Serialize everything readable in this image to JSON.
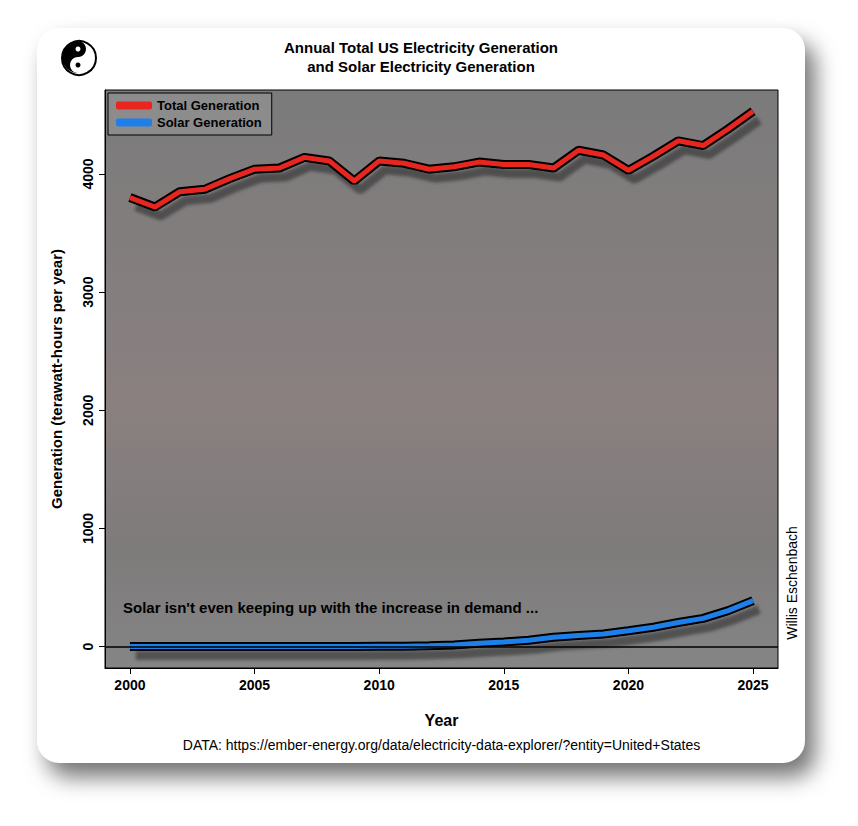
{
  "chart_data": {
    "type": "line",
    "title": "Annual Total US Electricity Generation\nand Solar Electricity Generation",
    "x_label": "Year",
    "y_label": "Generation (terawatt-hours per year)",
    "annotations": [
      "Solar isn't even keeping up with the increase in demand ...",
      "Willis Eschenbach",
      "DATA: https://ember-energy.org/data/electricity-data-explorer/?entity=United+States"
    ],
    "x": [
      2000,
      2001,
      2002,
      2003,
      2004,
      2005,
      2006,
      2007,
      2008,
      2009,
      2010,
      2011,
      2012,
      2013,
      2014,
      2015,
      2016,
      2017,
      2018,
      2019,
      2020,
      2021,
      2022,
      2023,
      2024,
      2025
    ],
    "series": [
      {
        "name": "Total Generation",
        "color": "#e8261f",
        "values": [
          3800,
          3720,
          3850,
          3870,
          3960,
          4040,
          4050,
          4140,
          4110,
          3940,
          4110,
          4090,
          4040,
          4060,
          4100,
          4080,
          4080,
          4050,
          4200,
          4160,
          4030,
          4150,
          4280,
          4240,
          4380,
          4530
        ]
      },
      {
        "name": "Solar Generation",
        "color": "#1f7fe8",
        "values": [
          1,
          1,
          1,
          1,
          1,
          1,
          1,
          1,
          2,
          2,
          3,
          4,
          8,
          15,
          30,
          40,
          55,
          80,
          95,
          107,
          135,
          165,
          205,
          240,
          305,
          390
        ]
      }
    ],
    "xlim": [
      1999,
      2026
    ],
    "xticks": [
      2000,
      2005,
      2010,
      2015,
      2020,
      2025
    ],
    "ylim": [
      -180,
      4710
    ],
    "yticks": [
      0,
      1000,
      2000,
      3000,
      4000
    ],
    "grid": false,
    "legend": "top-left",
    "line_style": "solid",
    "marker": "none"
  }
}
